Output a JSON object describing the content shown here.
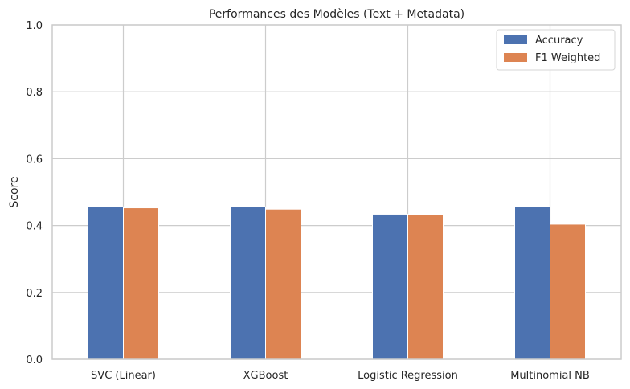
{
  "chart_data": {
    "type": "bar",
    "title": "Performances des Modèles (Text + Metadata)",
    "xlabel": "",
    "ylabel": "Score",
    "ylim": [
      0,
      1
    ],
    "yticks": [
      "0.0",
      "0.2",
      "0.4",
      "0.6",
      "0.8",
      "1.0"
    ],
    "categories": [
      "SVC (Linear)",
      "XGBoost",
      "Logistic Regression",
      "Multinomial NB"
    ],
    "series": [
      {
        "name": "Accuracy",
        "color": "#4c72b0",
        "values": [
          0.456,
          0.456,
          0.434,
          0.456
        ]
      },
      {
        "name": "F1 Weighted",
        "color": "#dd8452",
        "values": [
          0.453,
          0.449,
          0.432,
          0.404
        ]
      }
    ],
    "grid": true,
    "legend": "top-right"
  }
}
